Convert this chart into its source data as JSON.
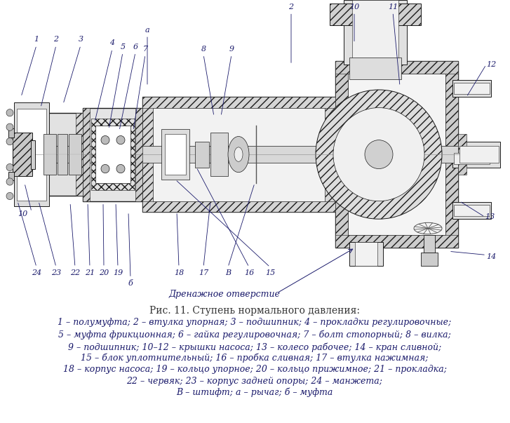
{
  "title": "Рис. 11. Ступень нормального давления:",
  "title_color": "#333333",
  "title_fontsize": 10,
  "bg_color": "#ffffff",
  "caption_lines": [
    "1 – полумуфта; 2 – втулка упорная; 3 – подшипник; 4 – прокладки регулировочные;",
    "5 – муфта фрикционная; 6 – гайка регулировочная; 7 – болт стопорный; 8 – вилка;",
    "9 – подшипник; 10–12 – крышки насоса; 13 – колесо рабочее; 14 – кран сливной;",
    "15 – блок уплотнительный; 16 – пробка сливная; 17 – втулка нажимная;",
    "18 – корпус насоса; 19 – кольцо упорное; 20 – кольцо прижимное; 21 – прокладка;",
    "22 – червяк; 23 – корпус задней опоры; 24 – манжета;",
    "В – штифт; а – рычаг; б – муфта"
  ],
  "caption_color": "#1a1a6b",
  "caption_fontsize": 9,
  "diagram_label": "Дренажное отверстие",
  "diagram_label_color": "#1a1a6b",
  "diagram_label_fontsize": 9,
  "label_color": "#1a1a6b",
  "label_fontsize": 8,
  "col": "#1a1a1a",
  "hatch_col": "#555555"
}
